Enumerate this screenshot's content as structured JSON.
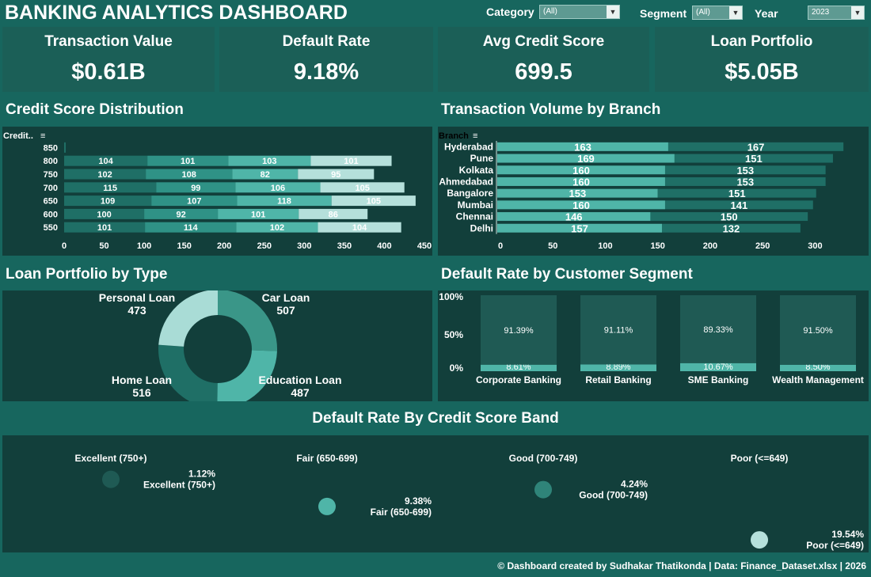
{
  "header": {
    "title": "BANKING ANALYTICS DASHBOARD",
    "filters": [
      {
        "label": "Category",
        "value": "(All)"
      },
      {
        "label": "Segment",
        "value": "(All)"
      },
      {
        "label": "Year",
        "value": "2023"
      }
    ]
  },
  "kpis": [
    {
      "label": "Transaction Value",
      "value": "$0.61B"
    },
    {
      "label": "Default Rate",
      "value": "9.18%"
    },
    {
      "label": "Avg Credit Score",
      "value": "699.5"
    },
    {
      "label": "Loan Portfolio",
      "value": "$5.05B"
    }
  ],
  "sections": {
    "credit_score": "Credit Score Distribution",
    "branch_volume": "Transaction Volume by Branch",
    "loan_portfolio": "Loan Portfolio by Type",
    "default_segment": "Default Rate by Customer Segment",
    "default_band": "Default Rate By Credit Score Band"
  },
  "chart_data": [
    {
      "id": "credit_score_distribution",
      "type": "bar",
      "orientation": "horizontal-stacked",
      "ylabel": "Credit..",
      "categories": [
        "850",
        "800",
        "750",
        "700",
        "650",
        "600",
        "550"
      ],
      "series": [
        {
          "values": [
            2,
            104,
            102,
            115,
            109,
            100,
            101
          ]
        },
        {
          "values": [
            0,
            101,
            108,
            99,
            107,
            92,
            114
          ]
        },
        {
          "values": [
            0,
            103,
            82,
            106,
            118,
            101,
            102
          ]
        },
        {
          "values": [
            0,
            101,
            95,
            105,
            105,
            86,
            104
          ]
        }
      ],
      "series_colors": [
        "#1f6f66",
        "#2f9286",
        "#4fb5a8",
        "#b5e0db"
      ],
      "xticks": [
        0,
        50,
        100,
        150,
        200,
        250,
        300,
        350,
        400,
        450
      ],
      "xlim": [
        0,
        450
      ]
    },
    {
      "id": "transaction_volume_by_branch",
      "type": "bar",
      "orientation": "horizontal-stacked",
      "ylabel": "Branch",
      "categories": [
        "Hyderabad",
        "Pune",
        "Kolkata",
        "Ahmedabad",
        "Bangalore",
        "Mumbai",
        "Chennai",
        "Delhi"
      ],
      "series": [
        {
          "values": [
            163,
            169,
            160,
            160,
            153,
            160,
            146,
            157
          ]
        },
        {
          "values": [
            167,
            151,
            153,
            153,
            151,
            141,
            150,
            132
          ]
        }
      ],
      "series_colors": [
        "#4fb5a8",
        "#1f6f66"
      ],
      "xticks": [
        0,
        50,
        100,
        150,
        200,
        250,
        300
      ],
      "xlim": [
        0,
        340
      ]
    },
    {
      "id": "loan_portfolio_by_type",
      "type": "pie",
      "style": "donut",
      "slices": [
        {
          "label": "Car Loan",
          "value": 507,
          "color": "#3a9688"
        },
        {
          "label": "Education Loan",
          "value": 487,
          "color": "#4fb5a8"
        },
        {
          "label": "Home Loan",
          "value": 516,
          "color": "#1f6f66"
        },
        {
          "label": "Personal Loan",
          "value": 473,
          "color": "#a9dcd6"
        }
      ]
    },
    {
      "id": "default_rate_by_customer_segment",
      "type": "bar",
      "orientation": "vertical-stacked-100",
      "categories": [
        "Corporate Banking",
        "Retail Banking",
        "SME Banking",
        "Wealth Management"
      ],
      "series": [
        {
          "values": [
            8.61,
            8.89,
            10.67,
            8.5
          ],
          "labels": [
            "8.61%",
            "8.89%",
            "10.67%",
            "8.50%"
          ]
        },
        {
          "values": [
            91.39,
            91.11,
            89.33,
            91.5
          ],
          "labels": [
            "91.39%",
            "91.11%",
            "89.33%",
            "91.50%"
          ]
        }
      ],
      "series_colors": [
        "#4fb5a8",
        "#1f5a54"
      ],
      "yticks": [
        "100%",
        "50%",
        "0%"
      ],
      "ylim": [
        0,
        100
      ]
    },
    {
      "id": "default_rate_by_credit_score_band",
      "type": "scatter",
      "columns": [
        "Excellent (750+)",
        "Fair (650-699)",
        "Good (700-749)",
        "Poor (<=649)"
      ],
      "points": [
        {
          "band": "Excellent (750+)",
          "value": 1.12,
          "label": "1.12%",
          "color": "#1f5a54"
        },
        {
          "band": "Fair (650-699)",
          "value": 9.38,
          "label": "9.38%",
          "color": "#4fb5a8"
        },
        {
          "band": "Good (700-749)",
          "value": 4.24,
          "label": "4.24%",
          "color": "#2f8479"
        },
        {
          "band": "Poor (<=649)",
          "value": 19.54,
          "label": "19.54%",
          "color": "#b5e0db"
        }
      ]
    }
  ],
  "footer": "© Dashboard created by Sudhakar Thatikonda | Data: Finance_Dataset.xlsx | 2026"
}
